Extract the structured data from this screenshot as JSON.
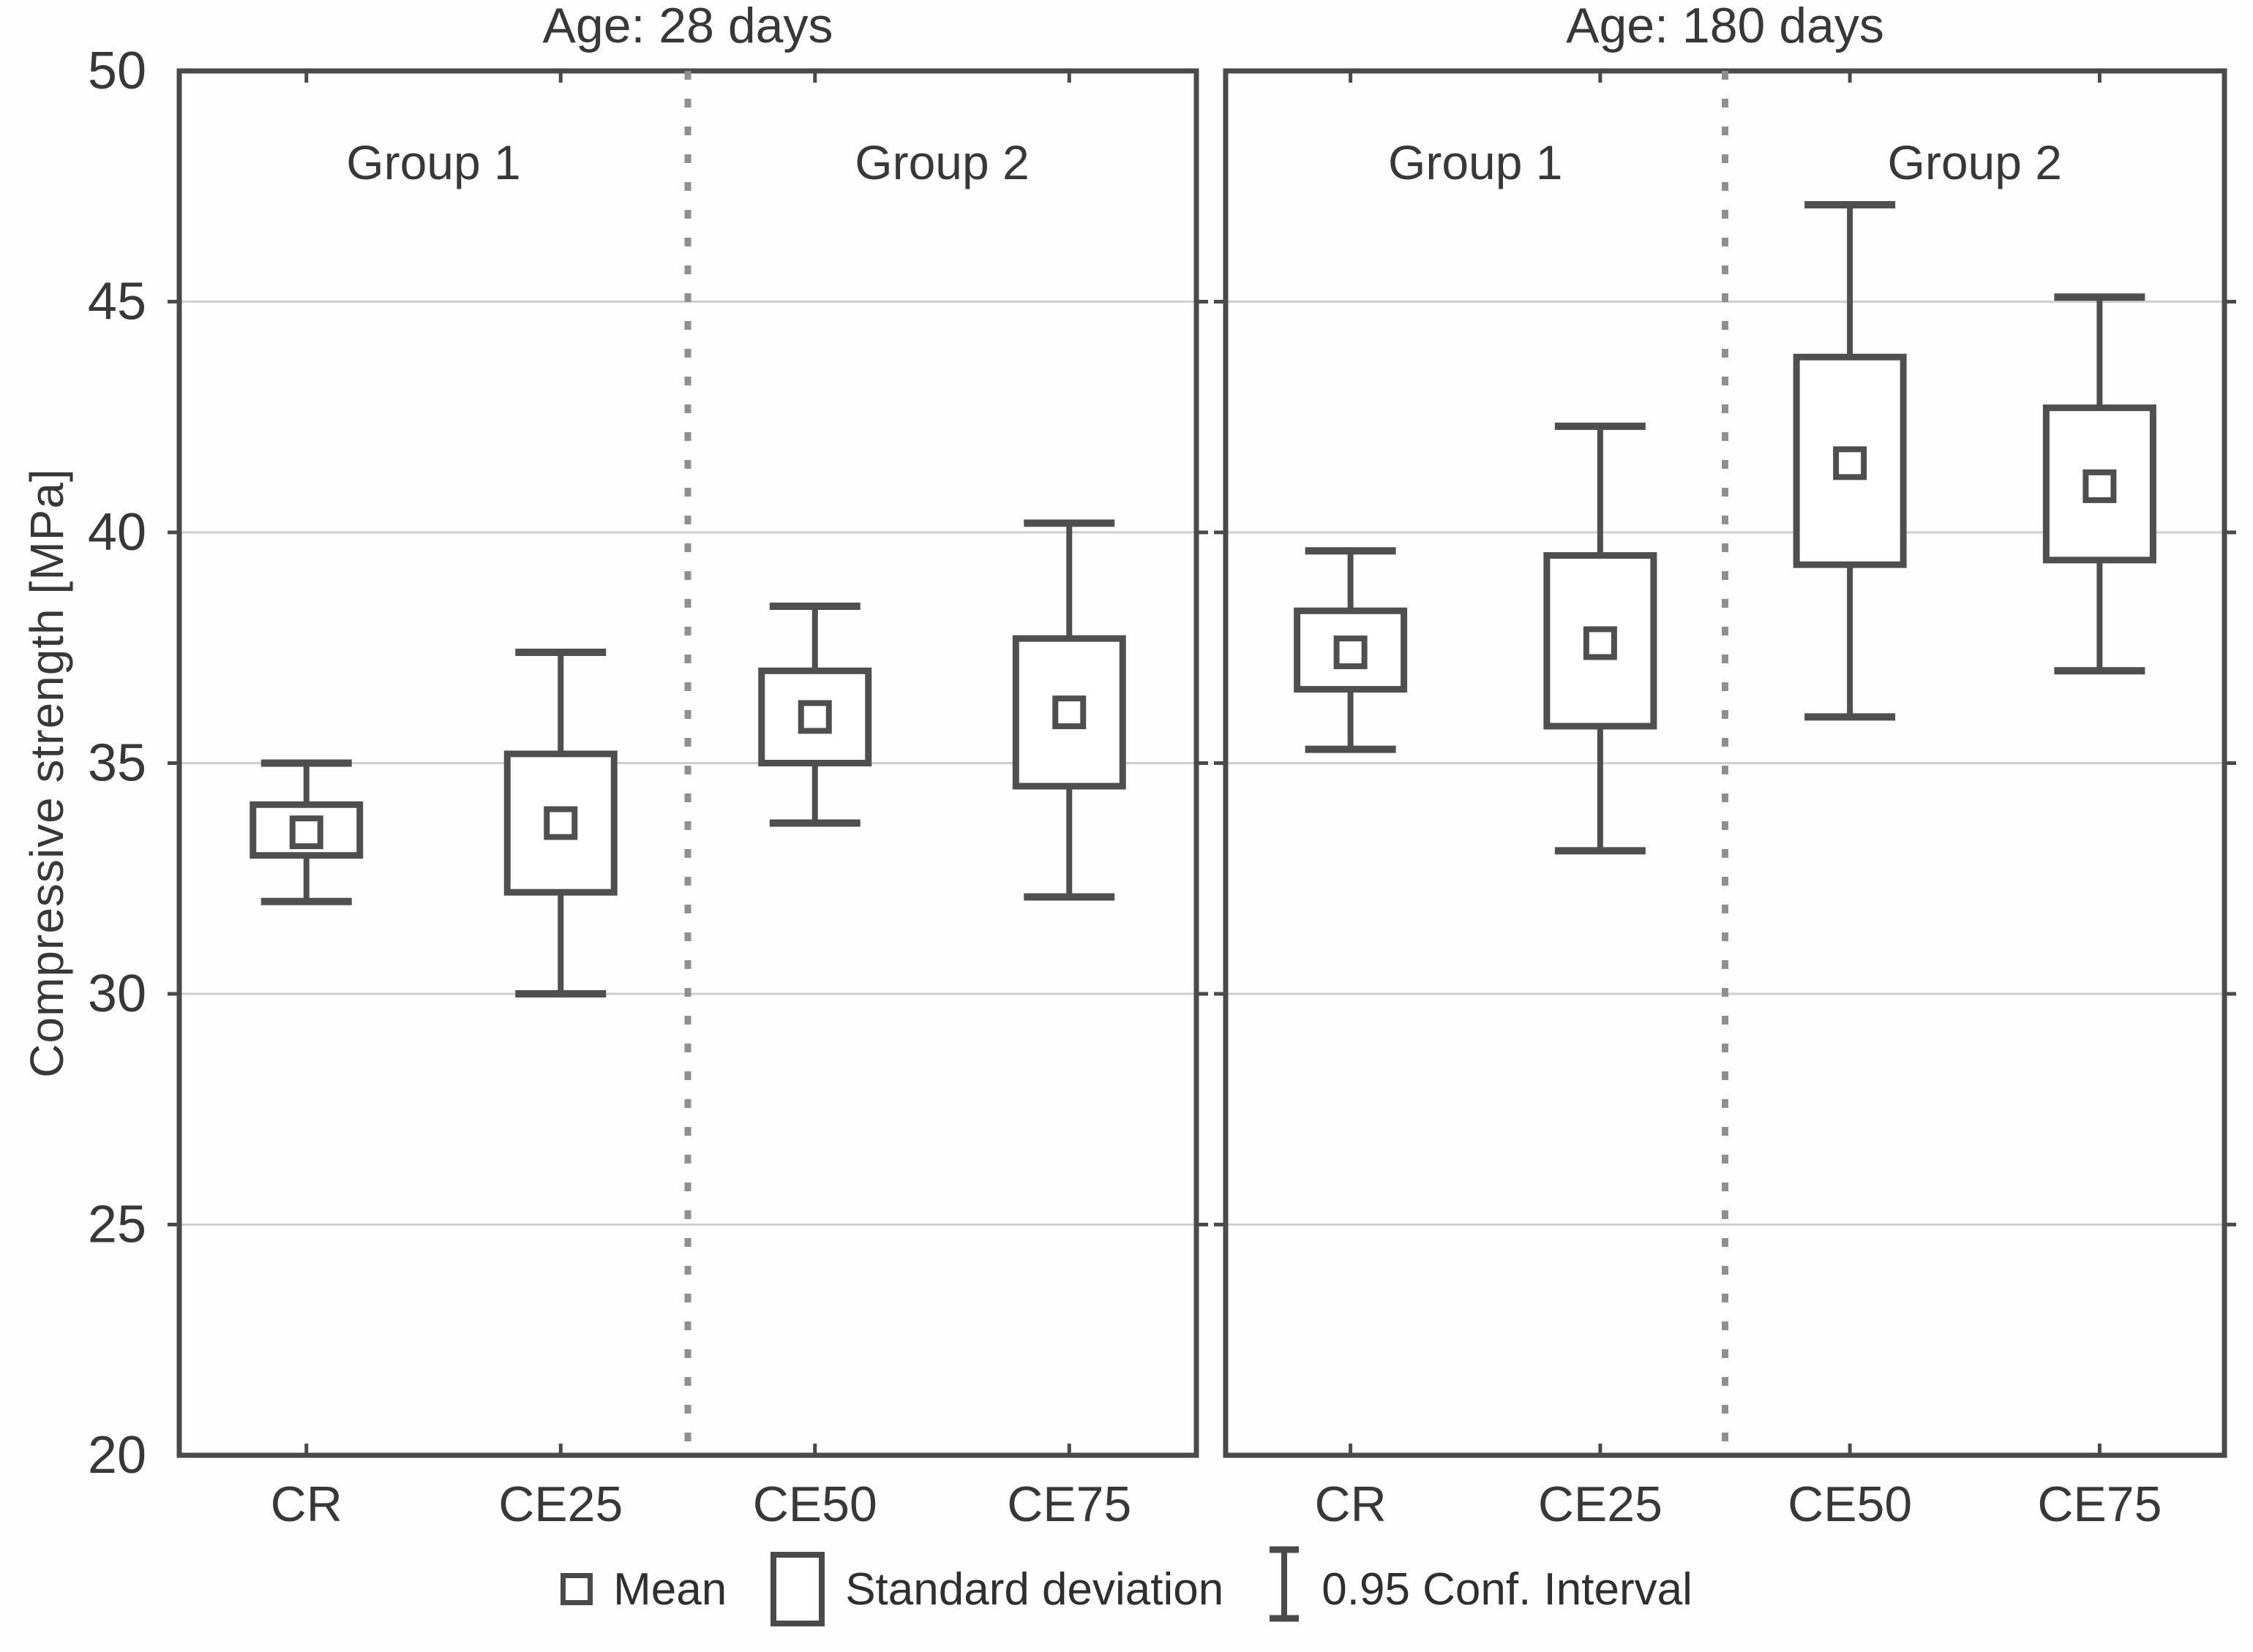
{
  "figure": {
    "y_axis_label": "Compressive strength [MPa]"
  },
  "chart_data": {
    "type": "box",
    "title": "",
    "ylabel": "Compressive strength [MPa]",
    "xlabel": "",
    "ylim": [
      20,
      50
    ],
    "yticks": [
      20,
      25,
      30,
      35,
      40,
      45,
      50
    ],
    "grid": true,
    "legend": [
      "Mean",
      "Standard deviation",
      "0.95 Conf. Interval"
    ],
    "legend_position": "bottom",
    "categories": [
      "CR",
      "CE25",
      "CE50",
      "CE75"
    ],
    "panels": [
      {
        "title": "Age: 28 days",
        "group_labels": [
          "Group 1",
          "Group 2"
        ],
        "boxes": [
          {
            "category": "CR",
            "mean": 33.5,
            "sd_low": 33.0,
            "sd_high": 34.1,
            "ci_low": 32.0,
            "ci_high": 35.0
          },
          {
            "category": "CE25",
            "mean": 33.7,
            "sd_low": 32.2,
            "sd_high": 35.2,
            "ci_low": 30.0,
            "ci_high": 37.4
          },
          {
            "category": "CE50",
            "mean": 36.0,
            "sd_low": 35.0,
            "sd_high": 37.0,
            "ci_low": 33.7,
            "ci_high": 38.4
          },
          {
            "category": "CE75",
            "mean": 36.1,
            "sd_low": 34.5,
            "sd_high": 37.7,
            "ci_low": 32.1,
            "ci_high": 40.2
          }
        ]
      },
      {
        "title": "Age: 180 days",
        "group_labels": [
          "Group 1",
          "Group 2"
        ],
        "boxes": [
          {
            "category": "CR",
            "mean": 37.4,
            "sd_low": 36.6,
            "sd_high": 38.3,
            "ci_low": 35.3,
            "ci_high": 39.6
          },
          {
            "category": "CE25",
            "mean": 37.6,
            "sd_low": 35.8,
            "sd_high": 39.5,
            "ci_low": 33.1,
            "ci_high": 42.3
          },
          {
            "category": "CE50",
            "mean": 41.5,
            "sd_low": 39.3,
            "sd_high": 43.8,
            "ci_low": 36.0,
            "ci_high": 47.1
          },
          {
            "category": "CE75",
            "mean": 41.0,
            "sd_low": 39.4,
            "sd_high": 42.7,
            "ci_low": 37.0,
            "ci_high": 45.1
          }
        ]
      }
    ]
  }
}
